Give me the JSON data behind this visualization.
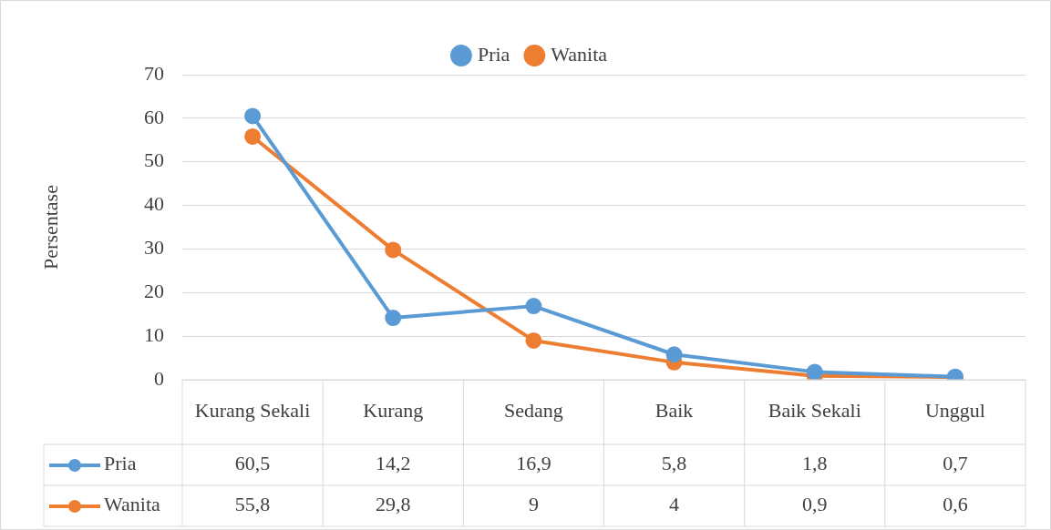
{
  "chart_data": {
    "type": "line",
    "ylabel": "Persentase",
    "categories": [
      "Kurang Sekali",
      "Kurang",
      "Sedang",
      "Baik",
      "Baik Sekali",
      "Unggul"
    ],
    "series": [
      {
        "name": "Pria",
        "color": "#5b9bd5",
        "values": [
          60.5,
          14.2,
          16.9,
          5.8,
          1.8,
          0.7
        ],
        "value_labels": [
          "60,5",
          "14,2",
          "16,9",
          "5,8",
          "1,8",
          "0,7"
        ]
      },
      {
        "name": "Wanita",
        "color": "#ed7d31",
        "values": [
          55.8,
          29.8,
          9,
          4,
          0.9,
          0.6
        ],
        "value_labels": [
          "55,8",
          "29,8",
          "9",
          "4",
          "0,9",
          "0,6"
        ]
      }
    ],
    "ylim": [
      0,
      70
    ],
    "yticks": [
      0,
      10,
      20,
      30,
      40,
      50,
      60,
      70
    ],
    "grid": "y",
    "legend": "top",
    "marker": "circle",
    "line_style": "solid"
  }
}
